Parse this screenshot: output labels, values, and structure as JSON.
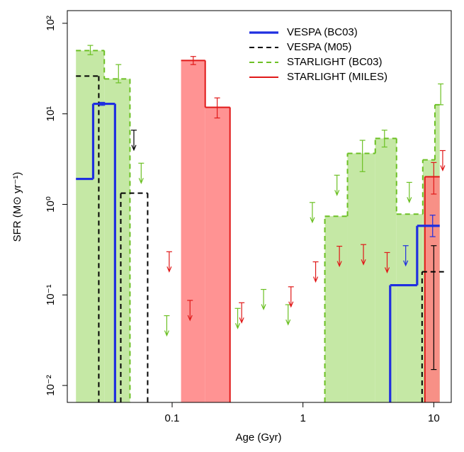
{
  "chart_data": {
    "type": "step",
    "xlabel": "Age (Gyr)",
    "ylabel": "SFR (M⊙ yr⁻¹)",
    "xlog": true,
    "ylog": true,
    "xlim": [
      0.0158,
      13.6
    ],
    "ylim": [
      0.0065,
      138
    ],
    "xticks": [
      0.1,
      1,
      10
    ],
    "yticks": [
      {
        "value": 0.01,
        "label": "10⁻²"
      },
      {
        "value": 0.1,
        "label": "10⁻¹"
      },
      {
        "value": 1,
        "label": "10⁰"
      },
      {
        "value": 10,
        "label": "10¹"
      },
      {
        "value": 100,
        "label": "10²"
      }
    ],
    "legend": "top-right",
    "series": [
      {
        "name": "STARLIGHT (BC03)",
        "color": "#6cc024",
        "fill": "#c5e8a5",
        "linestyle": "dashed",
        "bins": [
          0.0184,
          0.0303,
          0.0476,
          1.47,
          2.19,
          3.57,
          5.19,
          8.24,
          10.2,
          11.1
        ],
        "values": [
          50,
          24.3,
          null,
          0.74,
          3.66,
          5.35,
          0.78,
          3.1,
          12.6
        ],
        "error_bars": {
          "x": [
            0.0237,
            0.0389,
            2.85,
            4.2,
            11.3
          ],
          "low": [
            45,
            22,
            2.3,
            4.3,
            12.6
          ],
          "high": [
            57,
            35,
            5.1,
            6.6,
            21.4
          ]
        },
        "upper_limits": {
          "x": [
            0.058,
            0.091,
            0.317,
            0.5,
            0.77,
            1.18,
            1.82,
            6.5
          ],
          "values": [
            2.85,
            0.059,
            0.071,
            0.115,
            0.078,
            1.05,
            2.1,
            1.75
          ]
        }
      },
      {
        "name": "STARLIGHT (MILES)",
        "color": "#e01818",
        "fill": "#ff8080",
        "linestyle": "solid",
        "bins": [
          0.117,
          0.179,
          0.277,
          8.55,
          11.1
        ],
        "values": [
          38.8,
          11.8,
          null,
          2.02
        ],
        "error_bars": {
          "x": [
            0.145,
            0.221,
            10
          ],
          "low": [
            35,
            9,
            1.3
          ],
          "high": [
            43,
            15,
            2.9
          ]
        },
        "upper_limits": {
          "x": [
            0.095,
            0.137,
            0.34,
            0.81,
            1.25,
            1.9,
            2.9,
            4.4,
            11.7
          ],
          "values": [
            0.3,
            0.087,
            0.082,
            0.123,
            0.232,
            0.345,
            0.36,
            0.294,
            3.93
          ]
        }
      },
      {
        "name": "VESPA (M05)",
        "color": "#000000",
        "linestyle": "dashed",
        "bins": [
          0.0184,
          0.0275,
          0.0405,
          0.065,
          8.14,
          11.96
        ],
        "values": [
          26.1,
          null,
          1.33,
          null,
          0.18
        ],
        "error_bars": {
          "x": [
            10
          ],
          "low": [
            0.015
          ],
          "high": [
            0.35
          ]
        },
        "upper_limits": {
          "x": [
            0.051
          ],
          "values": [
            6.6
          ]
        }
      },
      {
        "name": "VESPA (BC03)",
        "color": "#1f2fe0",
        "linestyle": "solid",
        "bins": [
          0.0184,
          0.0249,
          0.0366,
          4.64,
          7.46,
          11.1
        ],
        "values": [
          1.91,
          12.9,
          null,
          0.128,
          0.58
        ],
        "error_bars": {
          "x": [
            0.0292,
            9.8
          ],
          "low": [
            12.4,
            0.44
          ],
          "high": [
            13.4,
            0.76
          ]
        },
        "upper_limits": {
          "x": [
            6.1
          ],
          "values": [
            0.35
          ]
        }
      }
    ],
    "legend_order": [
      3,
      2,
      0,
      1
    ]
  }
}
